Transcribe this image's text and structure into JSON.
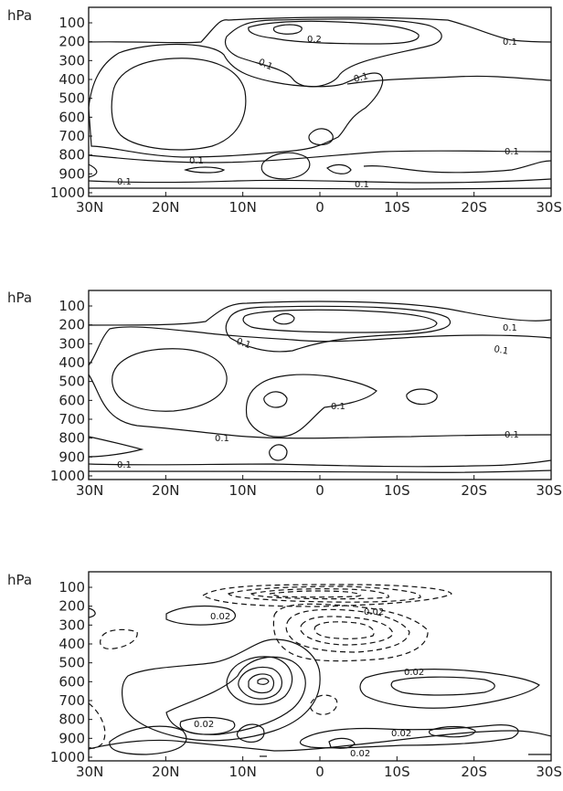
{
  "chart_data": [
    {
      "type": "contour",
      "ylabel": "hPa",
      "y_ticks": [
        "100",
        "200",
        "300",
        "400",
        "500",
        "600",
        "700",
        "800",
        "900",
        "1000"
      ],
      "x_ticks": [
        "30N",
        "20N",
        "10N",
        "0",
        "10S",
        "20S",
        "30S"
      ],
      "contour_labels": [
        "0.2",
        "0.1",
        "0.1",
        "0.1",
        "0.1",
        "0.1",
        "0.1",
        "0.1",
        "0.1"
      ]
    },
    {
      "type": "contour",
      "ylabel": "hPa",
      "y_ticks": [
        "100",
        "200",
        "300",
        "400",
        "500",
        "600",
        "700",
        "800",
        "900",
        "1000"
      ],
      "x_ticks": [
        "30N",
        "20N",
        "10N",
        "0",
        "10S",
        "20S",
        "30S"
      ],
      "contour_labels": [
        "0.1",
        "0.1",
        "0.1",
        "0.1",
        "0.1",
        "0.1",
        "0.1"
      ]
    },
    {
      "type": "contour",
      "ylabel": "hPa",
      "y_ticks": [
        "100",
        "200",
        "300",
        "400",
        "500",
        "600",
        "700",
        "800",
        "900",
        "1000"
      ],
      "x_ticks": [
        "30N",
        "20N",
        "10N",
        "0",
        "10S",
        "20S",
        "30S"
      ],
      "contour_labels": [
        "0.02",
        "0.02",
        "0.02",
        "0.02",
        "0.02",
        "0.02"
      ]
    }
  ]
}
